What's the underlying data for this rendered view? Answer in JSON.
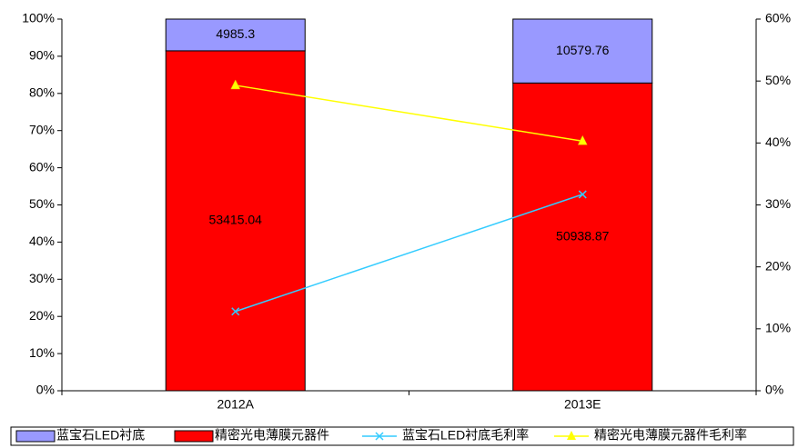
{
  "chart_data": {
    "type": "bar",
    "stack": "percent",
    "categories": [
      "2012A",
      "2013E"
    ],
    "series": [
      {
        "name": "蓝宝石LED衬底",
        "kind": "bar",
        "color": "#9999ff",
        "values": [
          4985.3,
          10579.76
        ]
      },
      {
        "name": "精密光电薄膜元器件",
        "kind": "bar",
        "color": "#ff0000",
        "values": [
          53415.04,
          50938.87
        ]
      },
      {
        "name": "蓝宝石LED衬底毛利率",
        "kind": "line",
        "marker": "x",
        "color": "#33ccff",
        "axis": "y2",
        "values": [
          12.8,
          31.7
        ]
      },
      {
        "name": "精密光电薄膜元器件毛利率",
        "kind": "line",
        "marker": "triangle",
        "color": "#ffff00",
        "axis": "y2",
        "values": [
          49.3,
          40.3
        ]
      }
    ],
    "ylim": [
      0,
      100
    ],
    "yticks": [
      {
        "value": 0,
        "label": "0%"
      },
      {
        "value": 10,
        "label": "10%"
      },
      {
        "value": 20,
        "label": "20%"
      },
      {
        "value": 30,
        "label": "30%"
      },
      {
        "value": 40,
        "label": "40%"
      },
      {
        "value": 50,
        "label": "50%"
      },
      {
        "value": 60,
        "label": "60%"
      },
      {
        "value": 70,
        "label": "70%"
      },
      {
        "value": 80,
        "label": "80%"
      },
      {
        "value": 90,
        "label": "90%"
      },
      {
        "value": 100,
        "label": "100%"
      }
    ],
    "y2lim": [
      0,
      60
    ],
    "y2ticks": [
      {
        "value": 0,
        "label": "0%"
      },
      {
        "value": 10,
        "label": "10%"
      },
      {
        "value": 20,
        "label": "20%"
      },
      {
        "value": 30,
        "label": "30%"
      },
      {
        "value": 40,
        "label": "40%"
      },
      {
        "value": 50,
        "label": "50%"
      },
      {
        "value": 60,
        "label": "60%"
      }
    ],
    "legend": "bottom"
  }
}
